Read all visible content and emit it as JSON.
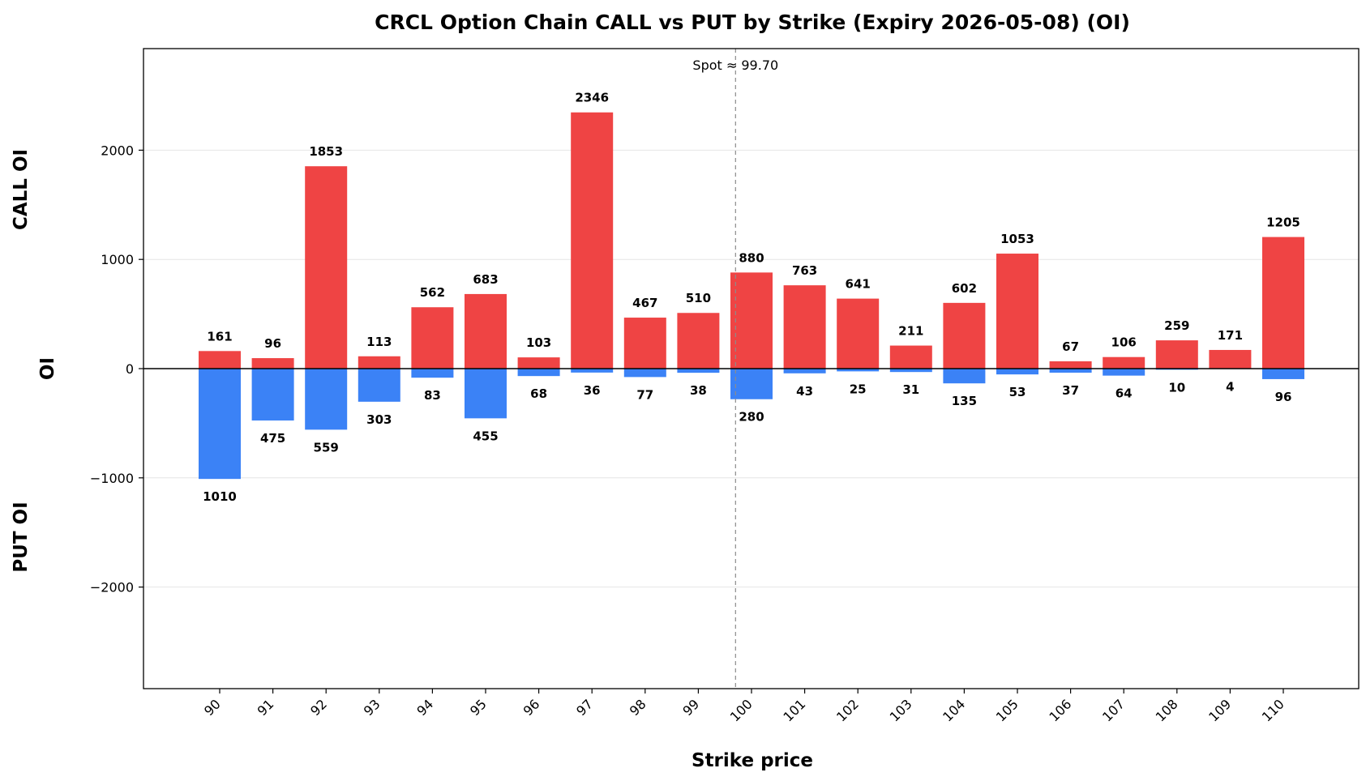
{
  "chart_data": {
    "type": "bar",
    "title": "CRCL Option Chain CALL vs PUT by Strike (Expiry 2026-05-08) (OI)",
    "xlabel": "Strike price",
    "ylabel": "OI",
    "ylabel_top": "CALL OI",
    "ylabel_bottom": "PUT OI",
    "categories": [
      "90",
      "91",
      "92",
      "93",
      "94",
      "95",
      "96",
      "97",
      "98",
      "99",
      "100",
      "101",
      "102",
      "103",
      "104",
      "105",
      "106",
      "107",
      "108",
      "109",
      "110"
    ],
    "series": [
      {
        "color": "#ef4444",
        "values": [
          161,
          96,
          1853,
          113,
          562,
          683,
          103,
          2346,
          467,
          510,
          880,
          763,
          641,
          211,
          602,
          1053,
          67,
          106,
          259,
          171,
          1205
        ]
      },
      {
        "color": "#3b82f6",
        "values": [
          -1010,
          -475,
          -559,
          -303,
          -83,
          -455,
          -68,
          -36,
          -77,
          -38,
          -280,
          -43,
          -25,
          -31,
          -135,
          -53,
          -37,
          -64,
          -10,
          -4,
          -96
        ]
      }
    ],
    "ylim": [
      -2930,
      2930
    ],
    "yticks": [
      -2000,
      -1000,
      0,
      1000,
      2000
    ],
    "ytick_labels": [
      "−2000",
      "−1000",
      "0",
      "1000",
      "2000"
    ],
    "spot": {
      "value": 99.7,
      "label": "Spot ≈ 99.70"
    },
    "grid": "horizontal",
    "legend": "none"
  }
}
